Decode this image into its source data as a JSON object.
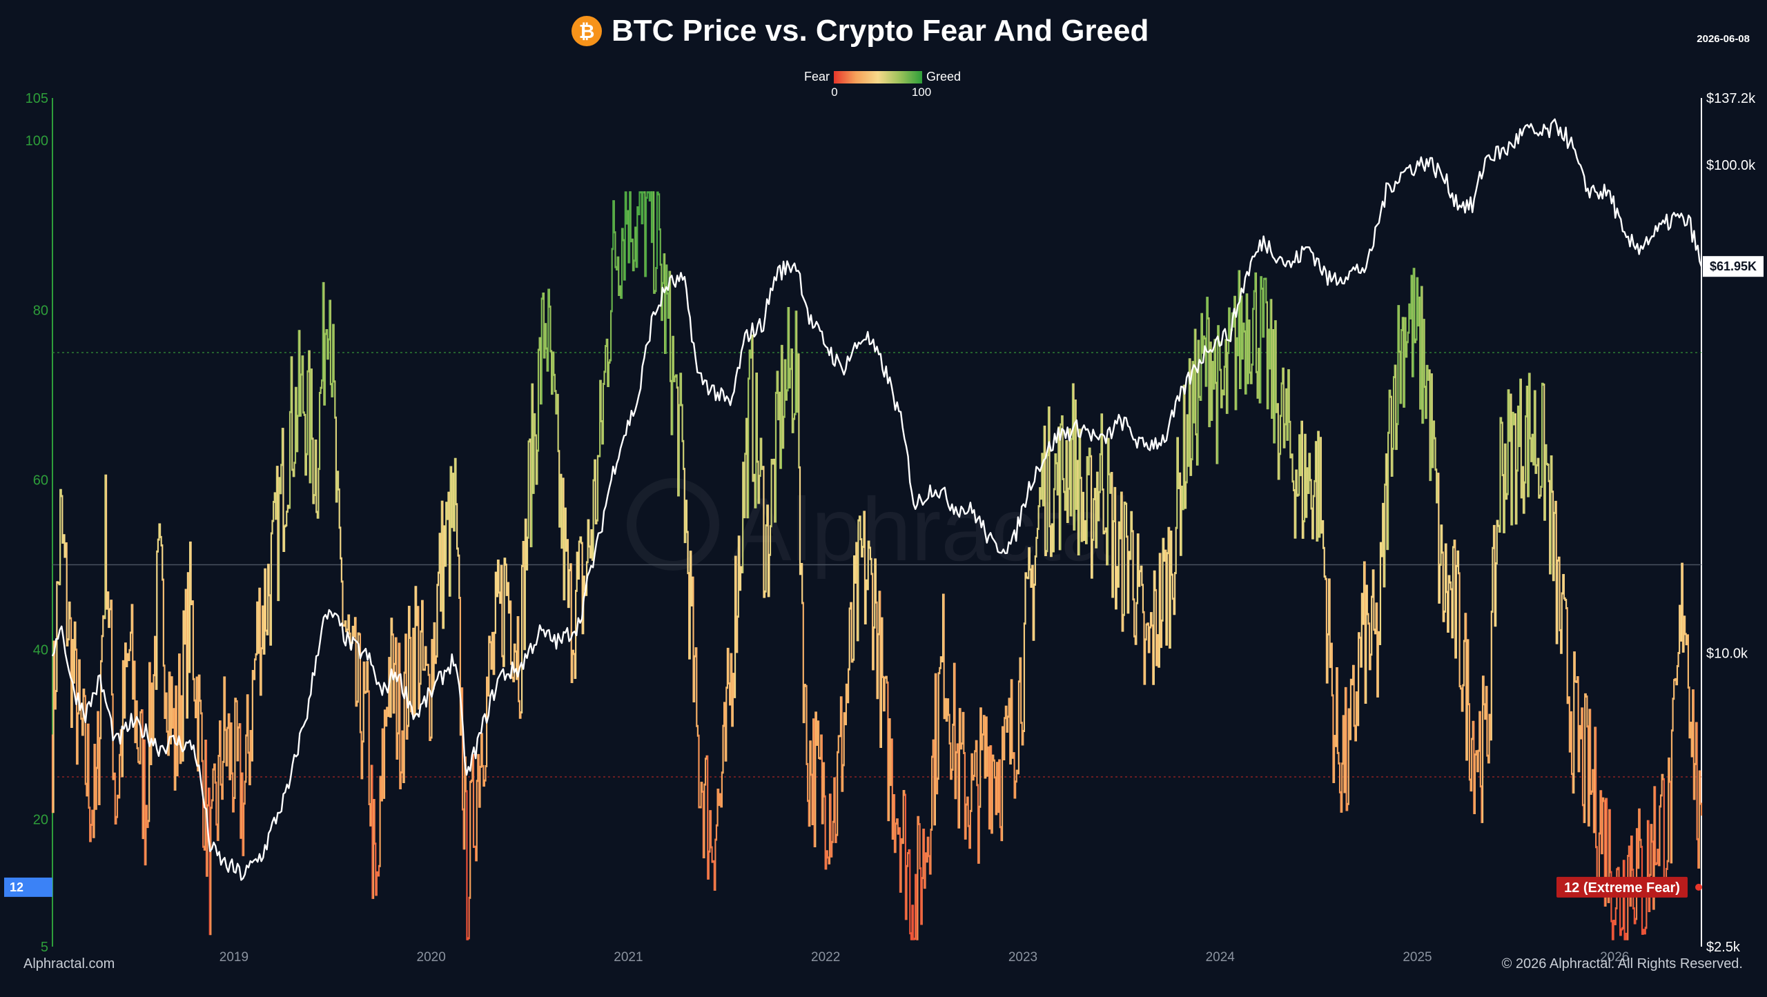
{
  "header": {
    "title": "BTC Price vs. Crypto Fear And Greed",
    "date": "2026-06-08",
    "logo_icon": "bitcoin-icon",
    "logo_color": "#f7931a"
  },
  "footer": {
    "left": "Alphractal.com",
    "right": "© 2026 Alphractal. All Rights Reserved."
  },
  "watermark": "Alphractal",
  "chart_data": {
    "type": "line",
    "legend": {
      "fear_label": "Fear",
      "greed_label": "Greed",
      "min_label": "0",
      "max_label": "100",
      "colors": [
        "#e8372b",
        "#f5a15a",
        "#f7d98a",
        "#9bc25a",
        "#2e9e3a"
      ]
    },
    "left_axis": {
      "range": [
        5,
        105
      ],
      "ticks": [
        "5",
        "20",
        "40",
        "60",
        "80",
        "100",
        "105"
      ],
      "color": "#2e9e3a"
    },
    "right_axis": {
      "scale": "log",
      "range": [
        2500,
        137200
      ],
      "ticks": [
        {
          "value": 2500,
          "label": "$2.5k"
        },
        {
          "value": 10000,
          "label": "$10.0k"
        },
        {
          "value": 100000,
          "label": "$100.0k"
        },
        {
          "value": 137200,
          "label": "$137.2k"
        }
      ]
    },
    "x_axis": {
      "range": [
        2018.08,
        2026.44
      ],
      "ticks": [
        "2019",
        "2020",
        "2021",
        "2022",
        "2023",
        "2024",
        "2025",
        "2026"
      ]
    },
    "reference_lines": [
      {
        "value": 75,
        "color": "#2e7d32",
        "style": "dotted"
      },
      {
        "value": 50,
        "color": "#4a5260",
        "style": "solid"
      },
      {
        "value": 25,
        "color": "#8b2222",
        "style": "dotted"
      }
    ],
    "current": {
      "fear_greed_value": 12,
      "fear_greed_left_label": "12",
      "fear_greed_label": "12 (Extreme Fear)",
      "price_label": "$61.95K",
      "price": 61950
    },
    "fear_greed_series": {
      "name": "Crypto Fear And Greed",
      "anchors": [
        [
          2018.08,
          30
        ],
        [
          2018.12,
          55
        ],
        [
          2018.17,
          40
        ],
        [
          2018.22,
          30
        ],
        [
          2018.3,
          20
        ],
        [
          2018.35,
          55
        ],
        [
          2018.4,
          22
        ],
        [
          2018.47,
          40
        ],
        [
          2018.55,
          22
        ],
        [
          2018.62,
          48
        ],
        [
          2018.7,
          28
        ],
        [
          2018.78,
          45
        ],
        [
          2018.88,
          14
        ],
        [
          2018.95,
          30
        ],
        [
          2019.05,
          22
        ],
        [
          2019.12,
          42
        ],
        [
          2019.2,
          50
        ],
        [
          2019.28,
          66
        ],
        [
          2019.35,
          70
        ],
        [
          2019.42,
          62
        ],
        [
          2019.48,
          86
        ],
        [
          2019.53,
          50
        ],
        [
          2019.6,
          36
        ],
        [
          2019.68,
          30
        ],
        [
          2019.72,
          8
        ],
        [
          2019.78,
          38
        ],
        [
          2019.85,
          32
        ],
        [
          2019.92,
          42
        ],
        [
          2019.98,
          34
        ],
        [
          2020.05,
          50
        ],
        [
          2020.12,
          56
        ],
        [
          2020.18,
          12
        ],
        [
          2020.25,
          30
        ],
        [
          2020.32,
          40
        ],
        [
          2020.38,
          48
        ],
        [
          2020.45,
          40
        ],
        [
          2020.5,
          60
        ],
        [
          2020.58,
          80
        ],
        [
          2020.63,
          64
        ],
        [
          2020.7,
          44
        ],
        [
          2020.78,
          48
        ],
        [
          2020.85,
          62
        ],
        [
          2020.92,
          86
        ],
        [
          2021.0,
          93
        ],
        [
          2021.05,
          90
        ],
        [
          2021.12,
          92
        ],
        [
          2021.2,
          78
        ],
        [
          2021.28,
          60
        ],
        [
          2021.35,
          28
        ],
        [
          2021.42,
          18
        ],
        [
          2021.48,
          24
        ],
        [
          2021.55,
          48
        ],
        [
          2021.62,
          70
        ],
        [
          2021.7,
          52
        ],
        [
          2021.78,
          70
        ],
        [
          2021.85,
          74
        ],
        [
          2021.9,
          28
        ],
        [
          2021.97,
          24
        ],
        [
          2022.05,
          22
        ],
        [
          2022.12,
          38
        ],
        [
          2022.18,
          50
        ],
        [
          2022.25,
          46
        ],
        [
          2022.3,
          30
        ],
        [
          2022.38,
          20
        ],
        [
          2022.45,
          10
        ],
        [
          2022.5,
          16
        ],
        [
          2022.55,
          28
        ],
        [
          2022.6,
          40
        ],
        [
          2022.67,
          26
        ],
        [
          2022.75,
          22
        ],
        [
          2022.82,
          28
        ],
        [
          2022.9,
          26
        ],
        [
          2022.95,
          30
        ],
        [
          2023.02,
          42
        ],
        [
          2023.1,
          60
        ],
        [
          2023.18,
          60
        ],
        [
          2023.25,
          64
        ],
        [
          2023.32,
          54
        ],
        [
          2023.4,
          62
        ],
        [
          2023.48,
          50
        ],
        [
          2023.55,
          52
        ],
        [
          2023.62,
          38
        ],
        [
          2023.68,
          44
        ],
        [
          2023.75,
          50
        ],
        [
          2023.82,
          64
        ],
        [
          2023.9,
          72
        ],
        [
          2023.95,
          76
        ],
        [
          2024.0,
          68
        ],
        [
          2024.08,
          76
        ],
        [
          2024.15,
          80
        ],
        [
          2024.22,
          76
        ],
        [
          2024.3,
          68
        ],
        [
          2024.4,
          60
        ],
        [
          2024.5,
          60
        ],
        [
          2024.58,
          30
        ],
        [
          2024.65,
          26
        ],
        [
          2024.72,
          42
        ],
        [
          2024.8,
          40
        ],
        [
          2024.87,
          70
        ],
        [
          2024.95,
          80
        ],
        [
          2025.05,
          72
        ],
        [
          2025.12,
          48
        ],
        [
          2025.2,
          44
        ],
        [
          2025.28,
          30
        ],
        [
          2025.35,
          28
        ],
        [
          2025.42,
          62
        ],
        [
          2025.5,
          64
        ],
        [
          2025.58,
          66
        ],
        [
          2025.65,
          62
        ],
        [
          2025.72,
          44
        ],
        [
          2025.8,
          30
        ],
        [
          2025.88,
          24
        ],
        [
          2025.95,
          18
        ],
        [
          2026.02,
          10
        ],
        [
          2026.08,
          16
        ],
        [
          2026.15,
          12
        ],
        [
          2026.22,
          20
        ],
        [
          2026.28,
          20
        ],
        [
          2026.35,
          48
        ],
        [
          2026.42,
          22
        ],
        [
          2026.44,
          12
        ]
      ]
    },
    "price_series": {
      "name": "BTC Price",
      "color": "#ffffff",
      "anchors": [
        [
          2018.08,
          10000
        ],
        [
          2018.12,
          11500
        ],
        [
          2018.18,
          8500
        ],
        [
          2018.25,
          7500
        ],
        [
          2018.32,
          8800
        ],
        [
          2018.4,
          6500
        ],
        [
          2018.48,
          7200
        ],
        [
          2018.55,
          6900
        ],
        [
          2018.62,
          6400
        ],
        [
          2018.7,
          6600
        ],
        [
          2018.8,
          6400
        ],
        [
          2018.88,
          4000
        ],
        [
          2018.95,
          3700
        ],
        [
          2019.05,
          3500
        ],
        [
          2019.15,
          3900
        ],
        [
          2019.28,
          5300
        ],
        [
          2019.38,
          7800
        ],
        [
          2019.45,
          11500
        ],
        [
          2019.5,
          12000
        ],
        [
          2019.58,
          10500
        ],
        [
          2019.68,
          9800
        ],
        [
          2019.75,
          8200
        ],
        [
          2019.82,
          9200
        ],
        [
          2019.92,
          7400
        ],
        [
          2020.02,
          8500
        ],
        [
          2020.12,
          9800
        ],
        [
          2020.18,
          5500
        ],
        [
          2020.25,
          6800
        ],
        [
          2020.35,
          9000
        ],
        [
          2020.45,
          9300
        ],
        [
          2020.55,
          11000
        ],
        [
          2020.65,
          10500
        ],
        [
          2020.75,
          11500
        ],
        [
          2020.85,
          17000
        ],
        [
          2020.95,
          26000
        ],
        [
          2021.05,
          33000
        ],
        [
          2021.12,
          48000
        ],
        [
          2021.2,
          57000
        ],
        [
          2021.28,
          58000
        ],
        [
          2021.35,
          37000
        ],
        [
          2021.45,
          34000
        ],
        [
          2021.52,
          32000
        ],
        [
          2021.6,
          45000
        ],
        [
          2021.68,
          47000
        ],
        [
          2021.75,
          60000
        ],
        [
          2021.85,
          63000
        ],
        [
          2021.92,
          48000
        ],
        [
          2022.0,
          43000
        ],
        [
          2022.08,
          38000
        ],
        [
          2022.2,
          45000
        ],
        [
          2022.3,
          38000
        ],
        [
          2022.38,
          30000
        ],
        [
          2022.45,
          20000
        ],
        [
          2022.55,
          22000
        ],
        [
          2022.65,
          20000
        ],
        [
          2022.75,
          19500
        ],
        [
          2022.85,
          16500
        ],
        [
          2022.95,
          16700
        ],
        [
          2023.05,
          23000
        ],
        [
          2023.18,
          28000
        ],
        [
          2023.3,
          29000
        ],
        [
          2023.4,
          27000
        ],
        [
          2023.5,
          30000
        ],
        [
          2023.6,
          26500
        ],
        [
          2023.72,
          27500
        ],
        [
          2023.82,
          35000
        ],
        [
          2023.95,
          43000
        ],
        [
          2024.05,
          45000
        ],
        [
          2024.15,
          62000
        ],
        [
          2024.22,
          70000
        ],
        [
          2024.35,
          62000
        ],
        [
          2024.45,
          68000
        ],
        [
          2024.55,
          58000
        ],
        [
          2024.65,
          60000
        ],
        [
          2024.75,
          62000
        ],
        [
          2024.85,
          90000
        ],
        [
          2024.95,
          98000
        ],
        [
          2025.05,
          102000
        ],
        [
          2025.12,
          96000
        ],
        [
          2025.2,
          84000
        ],
        [
          2025.28,
          82000
        ],
        [
          2025.35,
          104000
        ],
        [
          2025.45,
          107000
        ],
        [
          2025.55,
          118000
        ],
        [
          2025.62,
          115000
        ],
        [
          2025.72,
          120000
        ],
        [
          2025.78,
          110000
        ],
        [
          2025.85,
          90000
        ],
        [
          2025.92,
          88000
        ],
        [
          2025.98,
          87000
        ],
        [
          2026.05,
          70000
        ],
        [
          2026.12,
          68000
        ],
        [
          2026.2,
          72000
        ],
        [
          2026.3,
          78000
        ],
        [
          2026.38,
          76000
        ],
        [
          2026.44,
          61950
        ]
      ]
    }
  }
}
